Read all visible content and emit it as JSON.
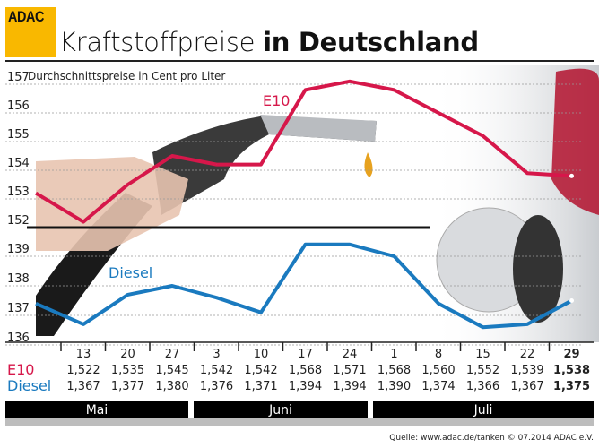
{
  "brand": "ADAC",
  "title": {
    "light": "Kraftstoffpreise",
    "bold": "in Deutschland"
  },
  "chart_data": {
    "type": "line",
    "subtitle": "Durchschnittspreise in Cent pro Liter",
    "x": [
      "",
      "13",
      "20",
      "27",
      "3",
      "10",
      "17",
      "24",
      "1",
      "8",
      "15",
      "22",
      "29"
    ],
    "months": [
      {
        "label": "Mai"
      },
      {
        "label": "Juni"
      },
      {
        "label": "Juli"
      }
    ],
    "series": [
      {
        "name": "E10",
        "color": "#d6174a",
        "ylim": [
          152,
          157
        ],
        "yticks": [
          "157",
          "156",
          "155",
          "154",
          "153",
          "152"
        ],
        "values": [
          153.2,
          152.2,
          153.5,
          154.5,
          154.2,
          154.2,
          156.8,
          157.1,
          156.8,
          156.0,
          155.2,
          153.9,
          153.8
        ]
      },
      {
        "name": "Diesel",
        "color": "#1a7abf",
        "ylim": [
          136,
          139
        ],
        "yticks": [
          "139",
          "138",
          "137",
          "136"
        ],
        "values": [
          137.4,
          136.7,
          137.7,
          138.0,
          137.6,
          137.1,
          139.4,
          139.4,
          139.0,
          137.4,
          136.6,
          136.7,
          137.5
        ]
      }
    ],
    "table": {
      "dates": [
        "13",
        "20",
        "27",
        "3",
        "10",
        "17",
        "24",
        "1",
        "8",
        "15",
        "22",
        "29"
      ],
      "rows": [
        {
          "label": "E10",
          "color": "#d6174a",
          "values": [
            "1,522",
            "1,535",
            "1,545",
            "1,542",
            "1,542",
            "1,568",
            "1,571",
            "1,568",
            "1,560",
            "1,552",
            "1,539",
            "1,538"
          ]
        },
        {
          "label": "Diesel",
          "color": "#1a7abf",
          "values": [
            "1,367",
            "1,377",
            "1,380",
            "1,376",
            "1,371",
            "1,394",
            "1,394",
            "1,390",
            "1,374",
            "1,366",
            "1,367",
            "1,375"
          ]
        }
      ]
    },
    "grid": true
  },
  "footer": "Quelle: www.adac.de/tanken   © 07.2014  ADAC e.V."
}
